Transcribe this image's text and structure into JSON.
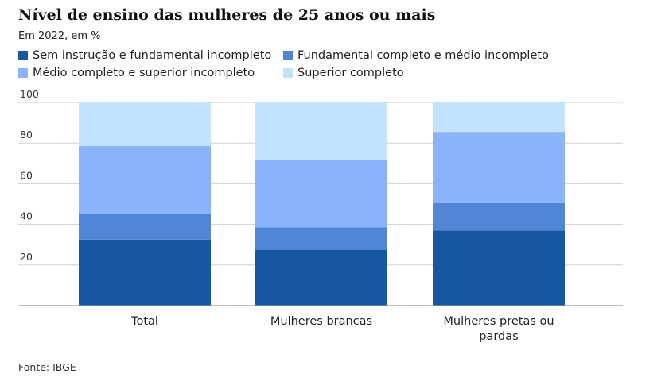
{
  "title": "Nível de ensino das mulheres de 25 anos ou mais",
  "subtitle": "Em 2022, em %",
  "source": "Fonte: IBGE",
  "colors": {
    "series": [
      "#1557a0",
      "#5186d6",
      "#8ab4fb",
      "#c3e2fb"
    ],
    "grid": "#d0d0d0",
    "axis": "#999999"
  },
  "chart_data": {
    "type": "bar",
    "stacked": true,
    "title": "Nível de ensino das mulheres de 25 anos ou mais",
    "subtitle": "Em 2022, em %",
    "categories": [
      "Total",
      "Mulheres brancas",
      "Mulheres pretas ou pardas"
    ],
    "category_lines": [
      [
        "Total"
      ],
      [
        "Mulheres brancas"
      ],
      [
        "Mulheres pretas ou",
        "pardas"
      ]
    ],
    "series": [
      {
        "name": "Sem instrução e fundamental incompleto",
        "values": [
          32.5,
          27.5,
          37.0
        ]
      },
      {
        "name": "Fundamental completo e médio incompleto",
        "values": [
          12.5,
          11.0,
          13.5
        ]
      },
      {
        "name": "Médio completo e superior incompleto",
        "values": [
          33.5,
          33.0,
          35.0
        ]
      },
      {
        "name": "Superior completo",
        "values": [
          21.5,
          28.5,
          14.5
        ]
      }
    ],
    "ylim": [
      0,
      100
    ],
    "yticks": [
      20,
      40,
      60,
      80,
      100
    ],
    "grid": true,
    "legend_position": "top-left"
  }
}
